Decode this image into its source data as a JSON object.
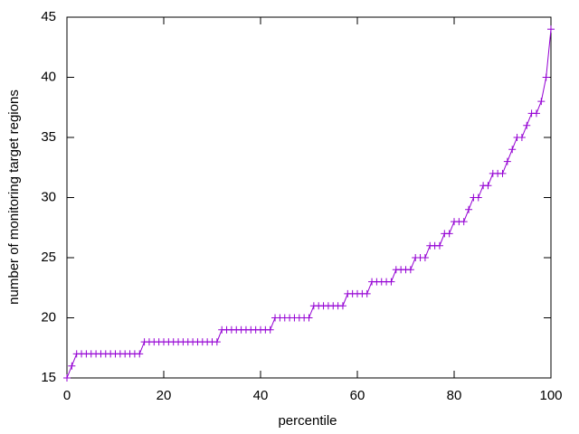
{
  "chart_data": {
    "type": "line",
    "xlabel": "percentile",
    "ylabel": "number of monitoring target regions",
    "x": [
      0,
      1,
      2,
      3,
      4,
      5,
      6,
      7,
      8,
      9,
      10,
      11,
      12,
      13,
      14,
      15,
      16,
      17,
      18,
      19,
      20,
      21,
      22,
      23,
      24,
      25,
      26,
      27,
      28,
      29,
      30,
      31,
      32,
      33,
      34,
      35,
      36,
      37,
      38,
      39,
      40,
      41,
      42,
      43,
      44,
      45,
      46,
      47,
      48,
      49,
      50,
      51,
      52,
      53,
      54,
      55,
      56,
      57,
      58,
      59,
      60,
      61,
      62,
      63,
      64,
      65,
      66,
      67,
      68,
      69,
      70,
      71,
      72,
      73,
      74,
      75,
      76,
      77,
      78,
      79,
      80,
      81,
      82,
      83,
      84,
      85,
      86,
      87,
      88,
      89,
      90,
      91,
      92,
      93,
      94,
      95,
      96,
      97,
      98,
      99,
      100
    ],
    "series": [
      {
        "color": "#9400d3",
        "values": [
          15,
          16,
          17,
          17,
          17,
          17,
          17,
          17,
          17,
          17,
          17,
          17,
          17,
          17,
          17,
          17,
          18,
          18,
          18,
          18,
          18,
          18,
          18,
          18,
          18,
          18,
          18,
          18,
          18,
          18,
          18,
          18,
          19,
          19,
          19,
          19,
          19,
          19,
          19,
          19,
          19,
          19,
          19,
          20,
          20,
          20,
          20,
          20,
          20,
          20,
          20,
          21,
          21,
          21,
          21,
          21,
          21,
          21,
          22,
          22,
          22,
          22,
          22,
          23,
          23,
          23,
          23,
          23,
          24,
          24,
          24,
          24,
          25,
          25,
          25,
          26,
          26,
          26,
          27,
          27,
          28,
          28,
          28,
          29,
          30,
          30,
          31,
          31,
          32,
          32,
          32,
          33,
          34,
          35,
          35,
          36,
          37,
          37,
          38,
          40,
          44
        ]
      }
    ],
    "xlim": [
      0,
      100
    ],
    "xticks": [
      0,
      20,
      40,
      60,
      80,
      100
    ],
    "ylim": [
      15,
      45
    ],
    "yticks": [
      15,
      20,
      25,
      30,
      35,
      40,
      45
    ]
  }
}
